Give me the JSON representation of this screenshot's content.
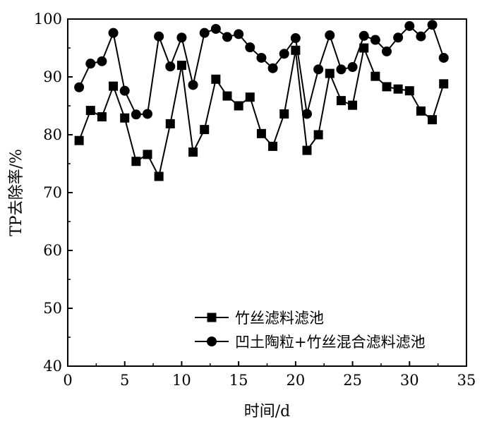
{
  "chart_data": {
    "type": "line",
    "title": "",
    "xlabel": "时间/d",
    "ylabel": "TP去除率/%",
    "xlim": [
      0,
      35
    ],
    "ylim": [
      40,
      100
    ],
    "xticks": [
      0,
      5,
      10,
      15,
      20,
      25,
      30,
      35
    ],
    "yticks": [
      40,
      50,
      60,
      70,
      80,
      90,
      100
    ],
    "grid": false,
    "legend_position": "bottom-right",
    "x": [
      1,
      2,
      3,
      4,
      5,
      6,
      7,
      8,
      9,
      10,
      11,
      12,
      13,
      14,
      15,
      16,
      17,
      18,
      19,
      20,
      21,
      22,
      23,
      24,
      25,
      26,
      27,
      28,
      29,
      30,
      31,
      32,
      33
    ],
    "series": [
      {
        "name": "竹丝滤料滤池",
        "marker": "square",
        "color": "#000000",
        "values": [
          79.0,
          84.2,
          83.1,
          88.4,
          82.9,
          75.4,
          76.6,
          72.8,
          81.9,
          92.0,
          77.0,
          80.9,
          89.6,
          86.7,
          85.0,
          86.5,
          80.2,
          78.0,
          83.6,
          94.6,
          77.3,
          80.0,
          90.6,
          85.9,
          85.1,
          95.0,
          90.1,
          88.3,
          87.9,
          87.6,
          84.1,
          82.6,
          88.8
        ]
      },
      {
        "name": "凹土陶粒+竹丝混合滤料滤池",
        "marker": "circle",
        "color": "#000000",
        "values": [
          88.2,
          92.3,
          92.7,
          97.6,
          87.6,
          83.5,
          83.6,
          97.0,
          91.8,
          96.8,
          88.6,
          97.6,
          98.3,
          96.9,
          97.4,
          95.1,
          93.3,
          91.5,
          94.0,
          96.7,
          83.6,
          91.3,
          97.2,
          91.3,
          91.7,
          97.1,
          96.4,
          94.4,
          96.8,
          98.8,
          97.0,
          99.0,
          93.3
        ]
      }
    ]
  }
}
